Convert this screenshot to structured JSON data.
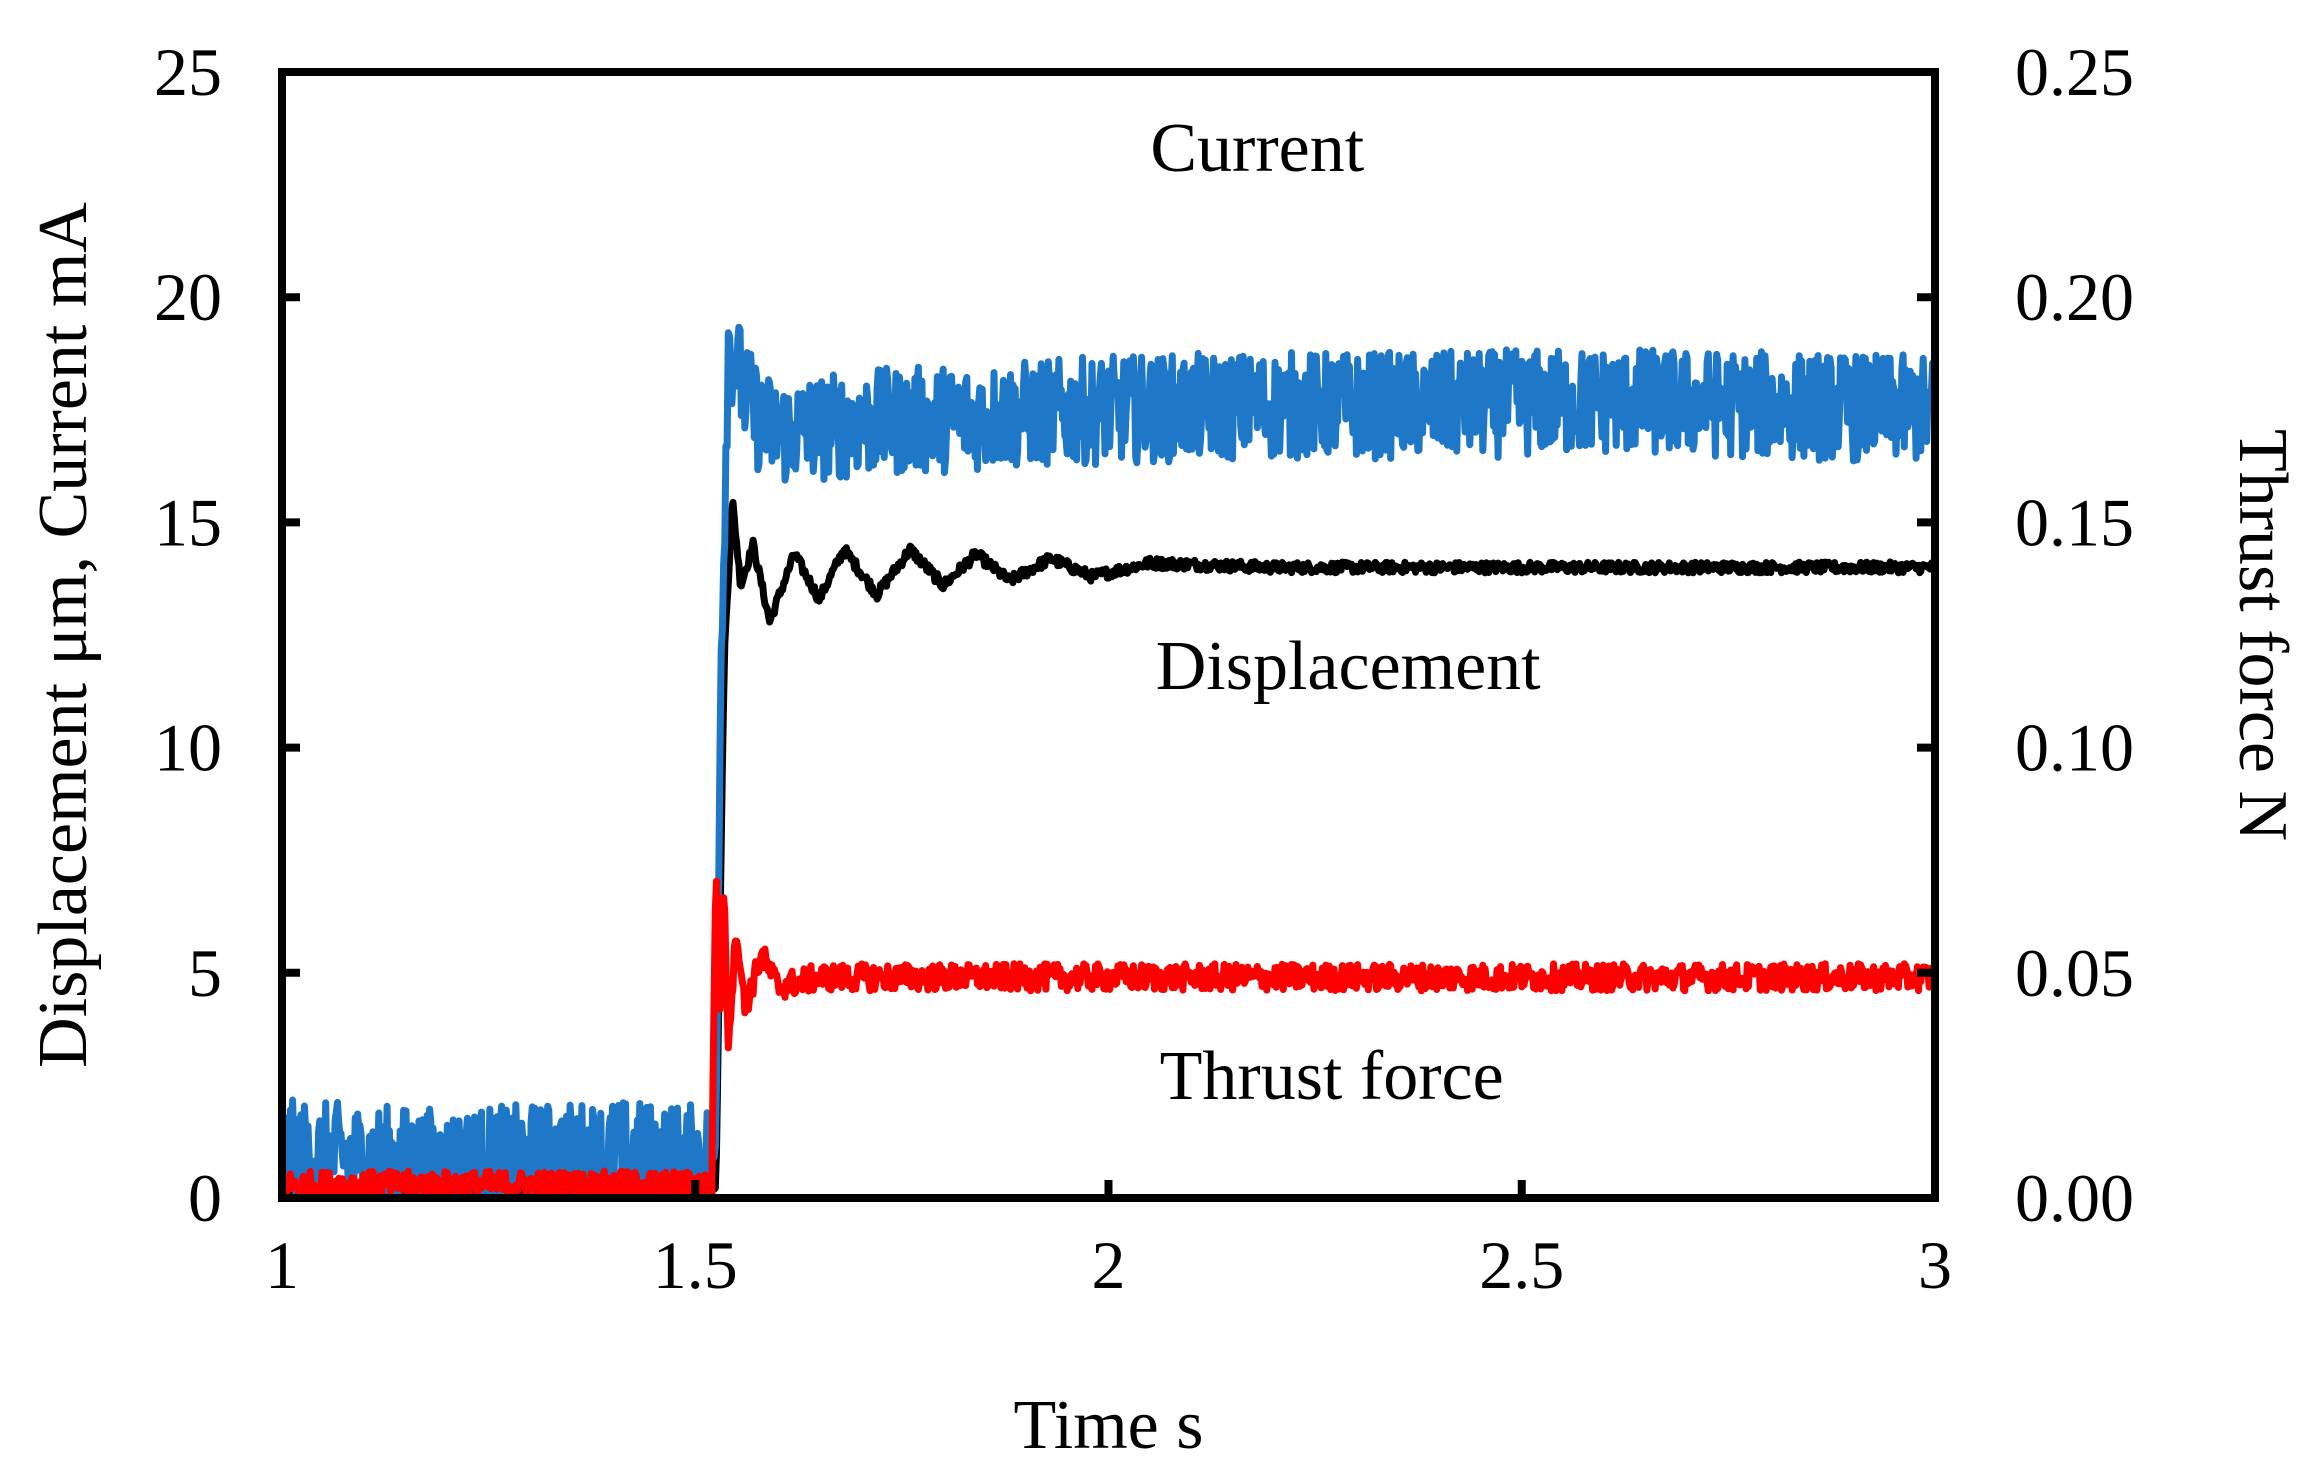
{
  "chart_data": {
    "type": "line",
    "xlabel": "Time s",
    "ylabel": "Displacement μm, Current mA",
    "y2label": "Thrust force N",
    "xlim": [
      1,
      3
    ],
    "ylim": [
      0,
      25
    ],
    "y2lim": [
      0,
      0.25
    ],
    "x_ticks": [
      "1",
      "1.5",
      "2",
      "2.5",
      "3"
    ],
    "y_ticks": [
      "0",
      "5",
      "10",
      "15",
      "20",
      "25"
    ],
    "y2_ticks": [
      "0.00",
      "0.05",
      "0.10",
      "0.15",
      "0.20",
      "0.25"
    ],
    "grid": false,
    "legend": "none",
    "annotations": [
      {
        "text": "Current",
        "x": 2.18,
        "y": 22.8
      },
      {
        "text": "Displacement",
        "x": 2.29,
        "y": 11.3
      },
      {
        "text": "Thrust force",
        "x": 2.27,
        "y": 2.2
      }
    ],
    "series": [
      {
        "label": "Current",
        "axis": "left",
        "color": "#1f77c8",
        "noise": 1.2,
        "x": [
          1.0,
          1.1,
          1.2,
          1.3,
          1.4,
          1.5,
          1.525,
          1.53,
          1.54,
          1.55,
          1.56,
          1.58,
          1.6,
          1.7,
          1.8,
          1.9,
          2.0,
          2.2,
          2.4,
          2.6,
          2.8,
          3.0
        ],
        "y": [
          1.0,
          0.9,
          0.8,
          0.9,
          1.0,
          0.9,
          1.0,
          11.0,
          19.0,
          18.5,
          17.8,
          17.2,
          17.0,
          17.2,
          17.3,
          17.4,
          17.5,
          17.6,
          17.6,
          17.7,
          17.6,
          17.5
        ]
      },
      {
        "label": "Displacement",
        "axis": "left",
        "color": "#000000",
        "noise": 0.12,
        "x": [
          1.0,
          1.5,
          1.525,
          1.535,
          1.545,
          1.555,
          1.57,
          1.59,
          1.62,
          1.65,
          1.68,
          1.72,
          1.76,
          1.8,
          1.84,
          1.88,
          1.93,
          1.98,
          2.05,
          2.2,
          2.4,
          2.6,
          2.8,
          3.0
        ],
        "y": [
          0.2,
          0.2,
          0.3,
          12.0,
          15.5,
          13.6,
          14.5,
          12.8,
          14.3,
          13.3,
          14.4,
          13.4,
          14.4,
          13.6,
          14.3,
          13.7,
          14.2,
          13.8,
          14.1,
          14.0,
          14.0,
          14.0,
          14.0,
          14.0
        ]
      },
      {
        "label": "Thrust force",
        "axis": "right",
        "color": "#ff0000",
        "noise": 0.003,
        "x": [
          1.0,
          1.5,
          1.52,
          1.525,
          1.53,
          1.535,
          1.54,
          1.55,
          1.56,
          1.58,
          1.6,
          1.65,
          1.7,
          2.0,
          2.5,
          3.0
        ],
        "y": [
          0.003,
          0.003,
          0.003,
          0.075,
          0.04,
          0.068,
          0.035,
          0.06,
          0.042,
          0.054,
          0.047,
          0.049,
          0.049,
          0.049,
          0.049,
          0.049
        ]
      }
    ]
  }
}
